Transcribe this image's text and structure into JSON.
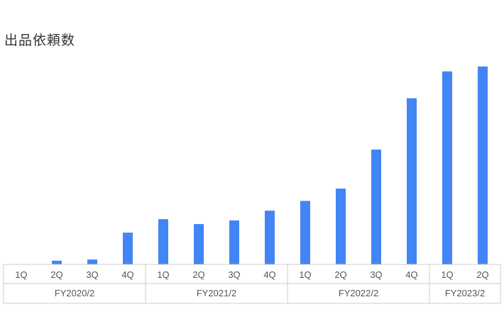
{
  "chart_data": {
    "type": "bar",
    "title": "出品依頼数",
    "categories": [
      "1Q",
      "2Q",
      "3Q",
      "4Q",
      "1Q",
      "2Q",
      "3Q",
      "4Q",
      "1Q",
      "2Q",
      "3Q",
      "4Q",
      "1Q",
      "2Q"
    ],
    "groups": [
      {
        "label": "FY2020/2",
        "count": 4
      },
      {
        "label": "FY2021/2",
        "count": 4
      },
      {
        "label": "FY2022/2",
        "count": 4
      },
      {
        "label": "FY2023/2",
        "count": 2
      }
    ],
    "values": [
      0,
      1.5,
      2,
      13,
      18.5,
      16.5,
      18,
      22,
      26,
      31,
      47,
      68,
      79,
      81
    ],
    "ylim": [
      0,
      85
    ],
    "grid": false,
    "color": "#4285f4"
  }
}
